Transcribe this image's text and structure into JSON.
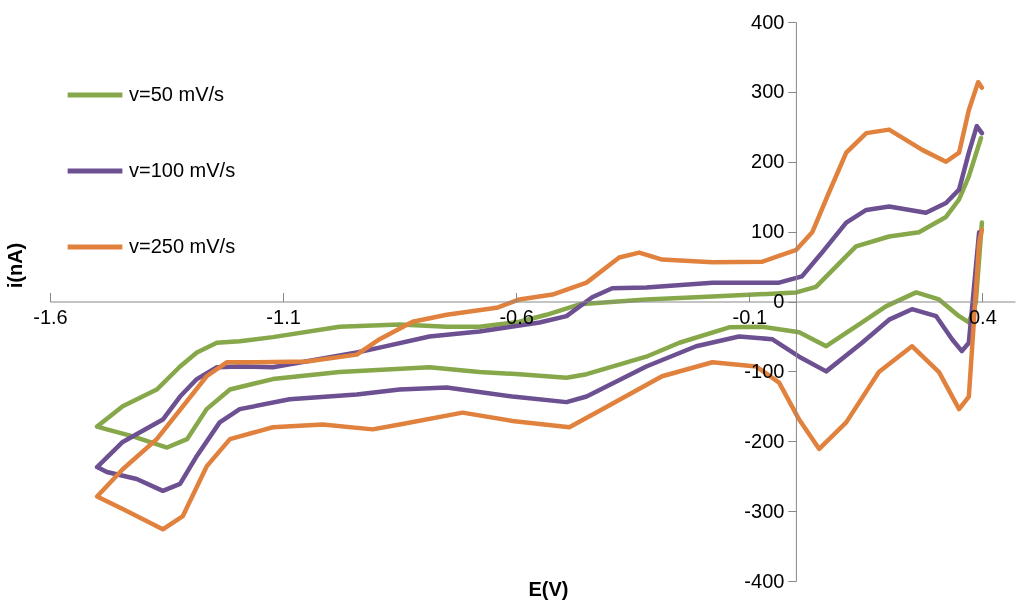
{
  "chart_data": {
    "type": "line",
    "xlabel": "E(V)",
    "ylabel": "i(nA)",
    "xlim": [
      -1.6,
      0.47
    ],
    "xticks": [
      -1.6,
      -1.1,
      -0.6,
      -0.1,
      0.4
    ],
    "ylim": [
      -400,
      400
    ],
    "yticks": [
      -400,
      -300,
      -200,
      -100,
      0,
      100,
      200,
      300,
      400
    ],
    "grid": false,
    "legend": "top left",
    "line_style": "solid",
    "marker": "none",
    "series": [
      {
        "name": "v=50 mV/s",
        "color": "#86a84a",
        "x": [
          0.397,
          0.371,
          0.35,
          0.322,
          0.264,
          0.2,
          0.129,
          0.086,
          0.043,
          0.001,
          -0.179,
          -0.321,
          -0.464,
          -0.535,
          -0.593,
          -0.679,
          -0.749,
          -0.85,
          -0.979,
          -1.122,
          -1.193,
          -1.242,
          -1.285,
          -1.321,
          -1.371,
          -1.444,
          -1.499,
          -1.478,
          -1.422,
          -1.349,
          -1.306,
          -1.264,
          -1.214,
          -1.122,
          -0.979,
          -0.786,
          -0.679,
          -0.593,
          -0.492,
          -0.449,
          -0.321,
          -0.25,
          -0.143,
          -0.072,
          0.007,
          0.065,
          0.142,
          0.193,
          0.258,
          0.307,
          0.35,
          0.371,
          0.386,
          0.399
        ],
        "values": [
          234,
          179,
          146,
          121,
          99,
          93,
          79,
          50,
          21,
          13,
          7,
          3,
          -4,
          -19,
          -29,
          -36,
          -36,
          -33,
          -36,
          -51,
          -57,
          -59,
          -73,
          -93,
          -126,
          -150,
          -179,
          -183,
          -193,
          -209,
          -197,
          -154,
          -126,
          -111,
          -101,
          -94,
          -101,
          -104,
          -109,
          -104,
          -79,
          -59,
          -37,
          -36,
          -44,
          -64,
          -30,
          -7,
          13,
          3,
          -21,
          -30,
          -1,
          113
        ]
      },
      {
        "name": "v=100 mV/s",
        "color": "#6c5091",
        "x": [
          0.399,
          0.388,
          0.371,
          0.35,
          0.322,
          0.279,
          0.2,
          0.151,
          0.108,
          0.056,
          0.013,
          -0.036,
          -0.179,
          -0.321,
          -0.394,
          -0.437,
          -0.492,
          -0.55,
          -0.679,
          -0.786,
          -0.893,
          -0.942,
          -1.122,
          -1.193,
          -1.242,
          -1.285,
          -1.321,
          -1.358,
          -1.444,
          -1.499,
          -1.478,
          -1.414,
          -1.358,
          -1.321,
          -1.285,
          -1.236,
          -1.193,
          -1.086,
          -0.942,
          -0.85,
          -0.749,
          -0.608,
          -0.492,
          -0.449,
          -0.321,
          -0.214,
          -0.122,
          -0.051,
          0.007,
          0.065,
          0.142,
          0.2,
          0.249,
          0.301,
          0.335,
          0.356,
          0.371,
          0.393
        ],
        "values": [
          241,
          251,
          213,
          160,
          141,
          127,
          136,
          131,
          113,
          70,
          36,
          27,
          27,
          20,
          19,
          6,
          -21,
          -30,
          -43,
          -50,
          -66,
          -73,
          -94,
          -93,
          -94,
          -111,
          -136,
          -169,
          -201,
          -237,
          -244,
          -254,
          -271,
          -261,
          -221,
          -173,
          -154,
          -140,
          -133,
          -126,
          -123,
          -136,
          -144,
          -136,
          -93,
          -64,
          -50,
          -54,
          -79,
          -100,
          -59,
          -26,
          -11,
          -21,
          -54,
          -71,
          -59,
          99
        ]
      },
      {
        "name": "v=250 mV/s",
        "color": "#e0823d",
        "x": [
          0.399,
          0.391,
          0.371,
          0.35,
          0.322,
          0.271,
          0.2,
          0.151,
          0.108,
          0.071,
          0.035,
          0.001,
          -0.072,
          -0.179,
          -0.287,
          -0.336,
          -0.379,
          -0.449,
          -0.522,
          -0.593,
          -0.642,
          -0.749,
          -0.822,
          -0.893,
          -0.942,
          -1.049,
          -1.156,
          -1.221,
          -1.264,
          -1.315,
          -1.371,
          -1.444,
          -1.499,
          -1.444,
          -1.358,
          -1.315,
          -1.264,
          -1.214,
          -1.122,
          -1.015,
          -0.908,
          -0.85,
          -0.715,
          -0.608,
          -0.486,
          -0.428,
          -0.287,
          -0.179,
          -0.085,
          -0.036,
          0.007,
          0.05,
          0.108,
          0.178,
          0.249,
          0.307,
          0.35,
          0.371,
          0.393,
          0.399
        ],
        "values": [
          306,
          314,
          274,
          213,
          200,
          217,
          246,
          241,
          213,
          156,
          99,
          74,
          57,
          56,
          60,
          70,
          63,
          27,
          10,
          3,
          -9,
          -19,
          -29,
          -54,
          -76,
          -86,
          -87,
          -87,
          -107,
          -150,
          -197,
          -240,
          -279,
          -297,
          -326,
          -307,
          -236,
          -197,
          -180,
          -176,
          -183,
          -176,
          -159,
          -171,
          -180,
          -159,
          -107,
          -87,
          -93,
          -116,
          -169,
          -211,
          -173,
          -101,
          -64,
          -101,
          -154,
          -136,
          84,
          103
        ]
      }
    ]
  }
}
